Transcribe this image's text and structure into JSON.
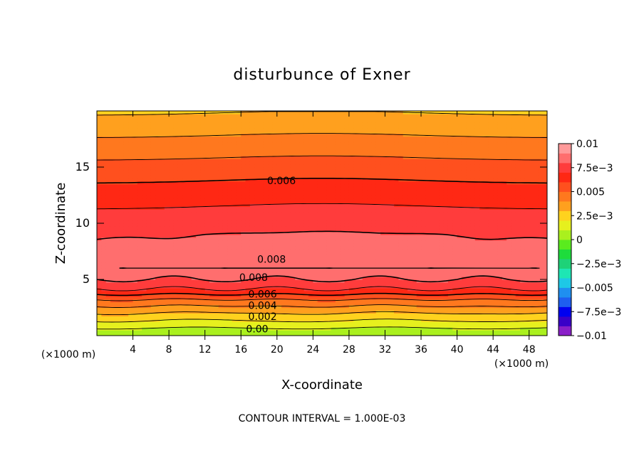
{
  "chart_data": {
    "type": "heatmap",
    "title": "disturbunce of Exner",
    "xlabel": "X-coordinate",
    "ylabel": "Z-coordinate",
    "x_unit": "(×1000 m)",
    "y_unit": "(×1000 m)",
    "footer": "CONTOUR INTERVAL = 1.000E-03",
    "xlim": [
      0,
      50
    ],
    "ylim": [
      0,
      20
    ],
    "x_ticks": [
      4,
      8,
      12,
      16,
      20,
      24,
      28,
      32,
      36,
      40,
      44,
      48
    ],
    "y_ticks": [
      5,
      10,
      15
    ],
    "colorbar": {
      "range": [
        -0.01,
        0.01
      ],
      "labels": [
        {
          "value": 0.01,
          "text": "0.01"
        },
        {
          "value": 0.0075,
          "text": "7.5e−3"
        },
        {
          "value": 0.005,
          "text": "0.005"
        },
        {
          "value": 0.0025,
          "text": "2.5e−3"
        },
        {
          "value": 0,
          "text": "0"
        },
        {
          "value": -0.0025,
          "text": "−2.5e−3"
        },
        {
          "value": -0.005,
          "text": "−0.005"
        },
        {
          "value": -0.0075,
          "text": "−7.5e−3"
        },
        {
          "value": -0.01,
          "text": "−0.01"
        }
      ],
      "colors": [
        "#8a1fc8",
        "#3a00c8",
        "#0000f0",
        "#1e5ef0",
        "#1f8ff0",
        "#1ec8e6",
        "#1ee6b4",
        "#1ed278",
        "#1edc3c",
        "#5aeb1e",
        "#aaf01e",
        "#e6f01e",
        "#ffd21e",
        "#ffa01e",
        "#ff781e",
        "#ff501e",
        "#ff2814",
        "#ff3c3c",
        "#ff6e6e",
        "#ff9a9a"
      ]
    },
    "contour_labels": [
      {
        "text": "0.006",
        "x": 20.5,
        "z": 13.8
      },
      {
        "text": "0.008",
        "x": 19.4,
        "z": 6.8
      },
      {
        "text": "0.008",
        "x": 17.4,
        "z": 5.2
      },
      {
        "text": "0.006",
        "x": 18.4,
        "z": 3.7
      },
      {
        "text": "0.004",
        "x": 18.4,
        "z": 2.7
      },
      {
        "text": "0.002",
        "x": 18.4,
        "z": 1.7
      },
      {
        "text": "0.00",
        "x": 17.8,
        "z": 0.6
      }
    ],
    "profile": {
      "z": [
        0,
        1,
        2,
        3,
        3.5,
        4,
        5,
        6,
        7,
        8,
        9,
        10,
        11,
        12,
        14,
        16,
        18,
        20
      ],
      "value": [
        0,
        0.0015,
        0.003,
        0.0046,
        0.0056,
        0.0068,
        0.008,
        0.0088,
        0.0085,
        0.0081,
        0.0079,
        0.0075,
        0.0071,
        0.0067,
        0.0058,
        0.0048,
        0.0038,
        0.0028
      ]
    }
  }
}
